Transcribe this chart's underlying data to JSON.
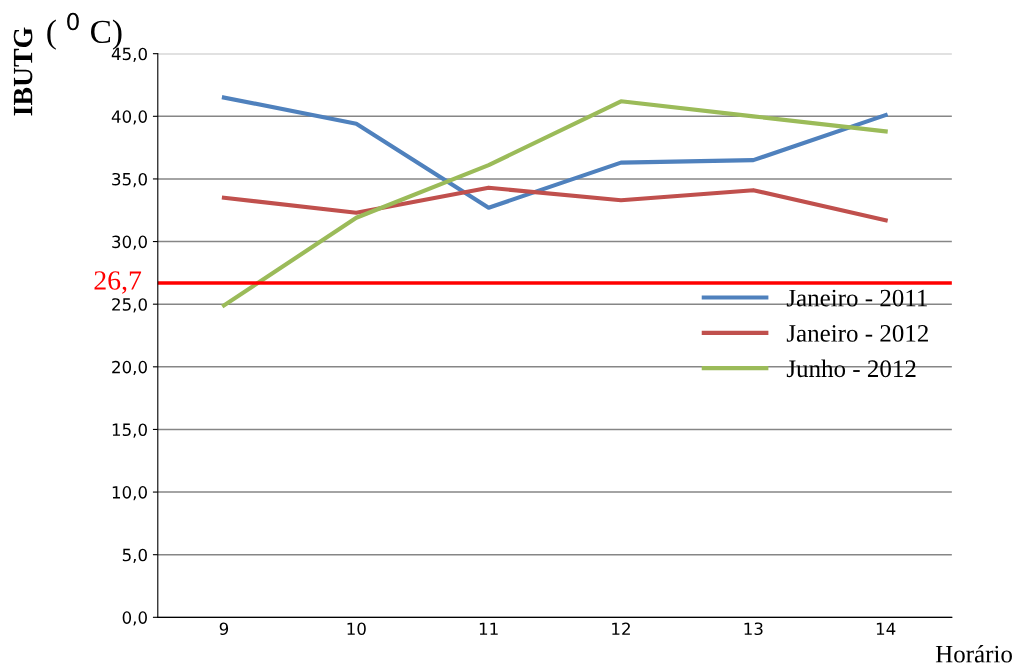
{
  "chart_data": {
    "type": "line",
    "ylabel": "IBUTG",
    "xlabel": "Horário",
    "annotations": [
      "( $^{0}$ C)"
    ],
    "categories": [
      "9",
      "10",
      "11",
      "12",
      "13",
      "14"
    ],
    "series": [
      {
        "name": "Janeiro - 2011",
        "color": "#4f81bd",
        "values": [
          41.5,
          39.4,
          32.7,
          36.3,
          36.5,
          40.1
        ]
      },
      {
        "name": "Janeiro - 2012",
        "color": "#c0504d",
        "values": [
          33.5,
          32.3,
          34.3,
          33.3,
          34.1,
          31.7
        ]
      },
      {
        "name": "Junho - 2012",
        "color": "#9bbb59",
        "values": [
          24.9,
          31.9,
          36.1,
          41.2,
          40.0,
          38.8
        ]
      }
    ],
    "ylim": [
      0,
      45
    ],
    "yticks": [
      {
        "value": 0,
        "label": "0,0"
      },
      {
        "value": 5,
        "label": "5,0"
      },
      {
        "value": 10,
        "label": "10,0"
      },
      {
        "value": 15,
        "label": "15,0"
      },
      {
        "value": 20,
        "label": "20,0"
      },
      {
        "value": 25,
        "label": "25,0"
      },
      {
        "value": 30,
        "label": "30,0"
      },
      {
        "value": 35,
        "label": "35,0"
      },
      {
        "value": 40,
        "label": "40,0"
      },
      {
        "value": 45,
        "label": "45,0"
      }
    ],
    "ref_lines": [
      {
        "axis": "y",
        "value": 26.7,
        "label": "26,7",
        "color": "#ff0000"
      }
    ],
    "grid": "y",
    "legend": "right",
    "marker": "none",
    "line_style": "solid"
  }
}
